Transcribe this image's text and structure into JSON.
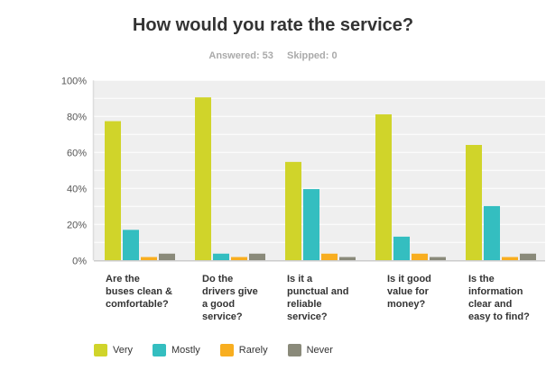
{
  "chart_data": {
    "type": "bar",
    "title": "How would you rate the service?",
    "answered_label": "Answered: 53",
    "skipped_label": "Skipped: 0",
    "categories": [
      [
        "Are the",
        "buses clean &",
        "comfortable?"
      ],
      [
        "Do the",
        "drivers give",
        "a good",
        "service?"
      ],
      [
        "Is it a",
        "punctual and",
        "reliable",
        "service?"
      ],
      [
        "Is it good",
        "value for",
        "money?"
      ],
      [
        "Is the",
        "information",
        "clear and",
        "easy to find?"
      ]
    ],
    "series": [
      {
        "name": "Very",
        "color": "#d0d42a",
        "values": [
          77.36,
          90.57,
          54.72,
          81.13,
          64.15
        ]
      },
      {
        "name": "Mostly",
        "color": "#34bec0",
        "values": [
          16.98,
          3.77,
          39.62,
          13.21,
          30.19
        ]
      },
      {
        "name": "Rarely",
        "color": "#f8ae20",
        "values": [
          1.89,
          1.89,
          3.77,
          3.77,
          1.89
        ]
      },
      {
        "name": "Never",
        "color": "#8a8a7a",
        "values": [
          3.77,
          3.77,
          1.89,
          1.89,
          3.77
        ]
      }
    ],
    "yticks": [
      "0%",
      "20%",
      "40%",
      "60%",
      "80%",
      "100%"
    ],
    "ylim": [
      0,
      100
    ],
    "grid": true,
    "legend": "bottom-left"
  }
}
